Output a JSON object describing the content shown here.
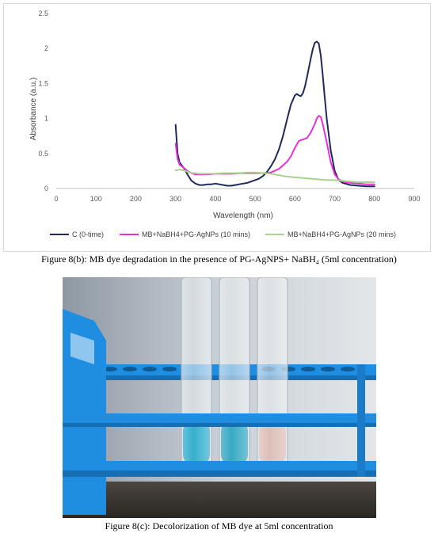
{
  "chart_data": {
    "type": "line",
    "title": "",
    "xlabel": "Wavelength (nm)",
    "ylabel": "Absorbance (a.u.)",
    "xlim": [
      0,
      900
    ],
    "ylim": [
      0,
      2.5
    ],
    "x_ticks": [
      "0",
      "100",
      "200",
      "300",
      "400",
      "500",
      "600",
      "700",
      "800",
      "900"
    ],
    "y_ticks": [
      "0",
      "0.5",
      "1",
      "1.5",
      "2",
      "2.5"
    ],
    "grid": false,
    "legend_position": "bottom",
    "series": [
      {
        "name": "C (0-time)",
        "color": "#1f2a5a",
        "x": [
          300,
          305,
          310,
          320,
          330,
          340,
          350,
          360,
          370,
          380,
          390,
          400,
          410,
          420,
          430,
          440,
          450,
          460,
          470,
          480,
          490,
          500,
          510,
          520,
          530,
          540,
          550,
          560,
          570,
          580,
          590,
          600,
          605,
          610,
          615,
          620,
          625,
          630,
          635,
          640,
          645,
          650,
          655,
          660,
          665,
          670,
          675,
          680,
          690,
          700,
          710,
          720,
          740,
          760,
          780,
          800
        ],
        "y": [
          0.91,
          0.5,
          0.37,
          0.3,
          0.2,
          0.11,
          0.07,
          0.05,
          0.05,
          0.06,
          0.06,
          0.07,
          0.06,
          0.05,
          0.04,
          0.04,
          0.05,
          0.06,
          0.07,
          0.08,
          0.1,
          0.12,
          0.14,
          0.18,
          0.24,
          0.32,
          0.42,
          0.56,
          0.75,
          0.98,
          1.2,
          1.33,
          1.35,
          1.33,
          1.32,
          1.36,
          1.45,
          1.58,
          1.72,
          1.86,
          1.99,
          2.08,
          2.1,
          2.07,
          1.9,
          1.62,
          1.3,
          1.0,
          0.55,
          0.25,
          0.12,
          0.08,
          0.05,
          0.04,
          0.03,
          0.03
        ]
      },
      {
        "name": "MB+NaBH4+PG-AgNPs (10 mins)",
        "color": "#e830d9",
        "x": [
          300,
          305,
          310,
          320,
          330,
          340,
          350,
          360,
          380,
          400,
          420,
          440,
          460,
          480,
          500,
          520,
          540,
          560,
          580,
          590,
          600,
          610,
          620,
          630,
          640,
          650,
          655,
          660,
          665,
          670,
          680,
          690,
          700,
          710,
          720,
          740,
          760,
          780,
          800
        ],
        "y": [
          0.64,
          0.42,
          0.34,
          0.3,
          0.25,
          0.22,
          0.2,
          0.2,
          0.2,
          0.21,
          0.21,
          0.21,
          0.22,
          0.22,
          0.22,
          0.22,
          0.23,
          0.28,
          0.38,
          0.46,
          0.58,
          0.68,
          0.7,
          0.72,
          0.8,
          0.92,
          1.0,
          1.04,
          1.02,
          0.92,
          0.66,
          0.38,
          0.2,
          0.13,
          0.1,
          0.08,
          0.07,
          0.06,
          0.06
        ]
      },
      {
        "name": "MB+NaBH4+PG-AgNPs (20 mins)",
        "color": "#a9d18e",
        "x": [
          300,
          310,
          320,
          330,
          340,
          350,
          360,
          380,
          400,
          420,
          440,
          460,
          480,
          500,
          520,
          540,
          560,
          580,
          600,
          620,
          640,
          660,
          680,
          700,
          720,
          740,
          760,
          780,
          800
        ],
        "y": [
          0.26,
          0.27,
          0.26,
          0.24,
          0.22,
          0.22,
          0.21,
          0.21,
          0.21,
          0.22,
          0.22,
          0.22,
          0.23,
          0.23,
          0.22,
          0.21,
          0.19,
          0.17,
          0.16,
          0.15,
          0.14,
          0.13,
          0.12,
          0.12,
          0.11,
          0.1,
          0.09,
          0.09,
          0.09
        ]
      }
    ]
  },
  "captions": {
    "figure_b": "Figure 8(b): MB dye degradation in the presence of PG-AgNPS+ NaBH₄ (5ml concentration)",
    "figure_c": "Figure 8(c): Decolorization of MB dye at 5ml concentration"
  },
  "colors": {
    "rack_blue": "#1f8de0",
    "tube_blue": "#1fa7c9",
    "tube_pink": "#d9b8b0"
  }
}
